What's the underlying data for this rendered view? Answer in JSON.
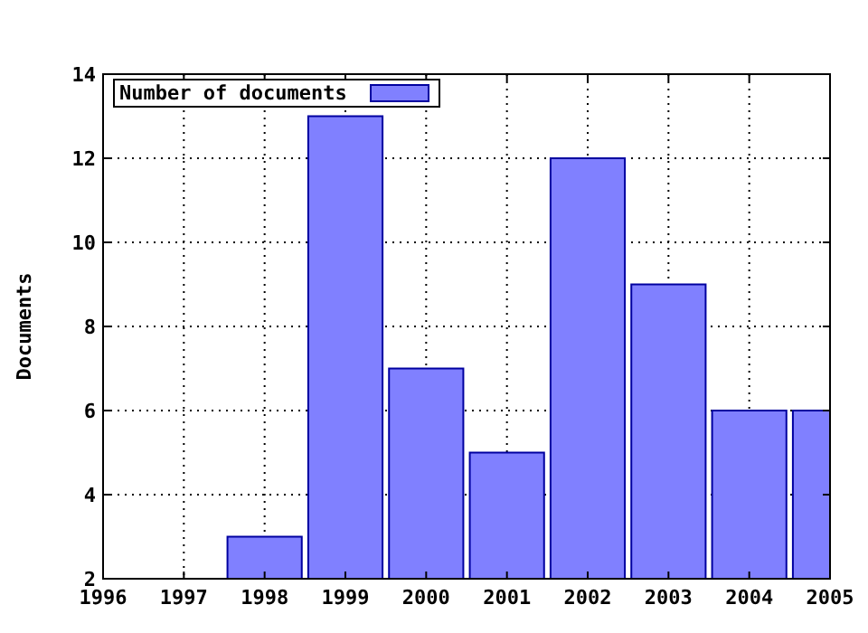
{
  "chart_data": {
    "type": "bar",
    "ylabel": "Documents",
    "x": [
      1998,
      1999,
      2000,
      2001,
      2002,
      2003,
      2004,
      2005
    ],
    "series": [
      {
        "name": "Number of documents",
        "color": "#8080ff",
        "values": [
          3,
          13,
          7,
          5,
          12,
          9,
          6,
          6
        ]
      }
    ],
    "xlim": [
      1996,
      2005
    ],
    "xticks": [
      1996,
      1997,
      1998,
      1999,
      2000,
      2001,
      2002,
      2003,
      2004,
      2005
    ],
    "ylim": [
      2,
      14
    ],
    "yticks": [
      2,
      4,
      6,
      8,
      10,
      12,
      14
    ],
    "grid": true,
    "legend": "top left"
  }
}
